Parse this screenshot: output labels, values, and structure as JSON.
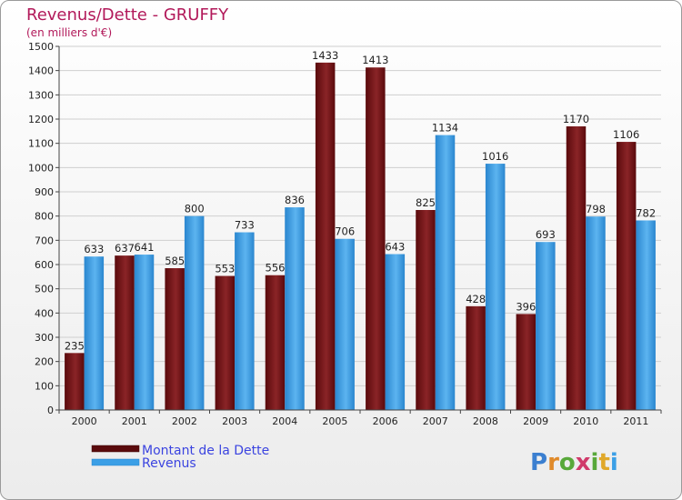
{
  "chart_data": {
    "type": "bar",
    "title": "Revenus/Dette - GRUFFY",
    "subtitle": "(en milliers d'€)",
    "xlabel": "",
    "ylabel": "",
    "ylim": [
      0,
      1500
    ],
    "yticks": [
      0,
      100,
      200,
      300,
      400,
      500,
      600,
      700,
      800,
      900,
      1000,
      1100,
      1200,
      1300,
      1400,
      1500
    ],
    "grid": true,
    "categories": [
      "2000",
      "2001",
      "2002",
      "2003",
      "2004",
      "2005",
      "2006",
      "2007",
      "2008",
      "2009",
      "2010",
      "2011"
    ],
    "series": [
      {
        "name": "Montant de la Dette",
        "color": "#7a1416",
        "values": [
          235,
          637,
          585,
          553,
          556,
          1433,
          1413,
          825,
          428,
          396,
          1170,
          1106
        ]
      },
      {
        "name": "Revenus",
        "color": "#3b9fe6",
        "values": [
          633,
          641,
          800,
          733,
          836,
          706,
          643,
          1134,
          1016,
          693,
          798,
          782
        ]
      }
    ]
  },
  "legend": {
    "items": [
      "Montant de la Dette",
      "Revenus"
    ]
  },
  "logo": {
    "letters": [
      "P",
      "r",
      "o",
      "x",
      "i",
      "t",
      "i"
    ],
    "colors": [
      "#3b7fd0",
      "#e08a2a",
      "#58a83a",
      "#d03a6a",
      "#58a83a",
      "#e0a82a",
      "#3b9fe6"
    ]
  }
}
